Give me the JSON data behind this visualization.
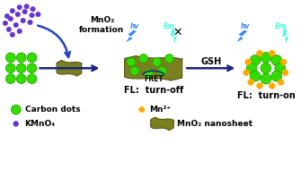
{
  "bg_color": "#ffffff",
  "green_dot_color": "#33dd00",
  "green_dot_edge": "#229900",
  "purple_dot_color": "#6633cc",
  "orange_dot_color": "#ffaa00",
  "arrow_color": "#1a237e",
  "nanosheet_color": "#7a8020",
  "nanosheet_edge": "#555510",
  "lightning_blue_color": "#3388ff",
  "lightning_cyan_color": "#44ffdd",
  "fret_arc_color": "#1a237e",
  "text_color": "#000000",
  "label_MnO2_formation": "MnO₂\nformation",
  "label_FRET": "FRET",
  "label_GSH": "GSH",
  "label_FL_off": "FL:  turn-off",
  "label_FL_on": "FL:  turn-on",
  "label_hv": "hv",
  "label_Em": "Em",
  "legend_carbon_dots": "Carbon dots",
  "legend_KMnO4": "KMnO₄",
  "legend_Mn2plus": "Mn²⁺",
  "legend_nanosheet": "MnO₂ nanosheet",
  "figsize": [
    3.35,
    1.89
  ],
  "dpi": 100
}
